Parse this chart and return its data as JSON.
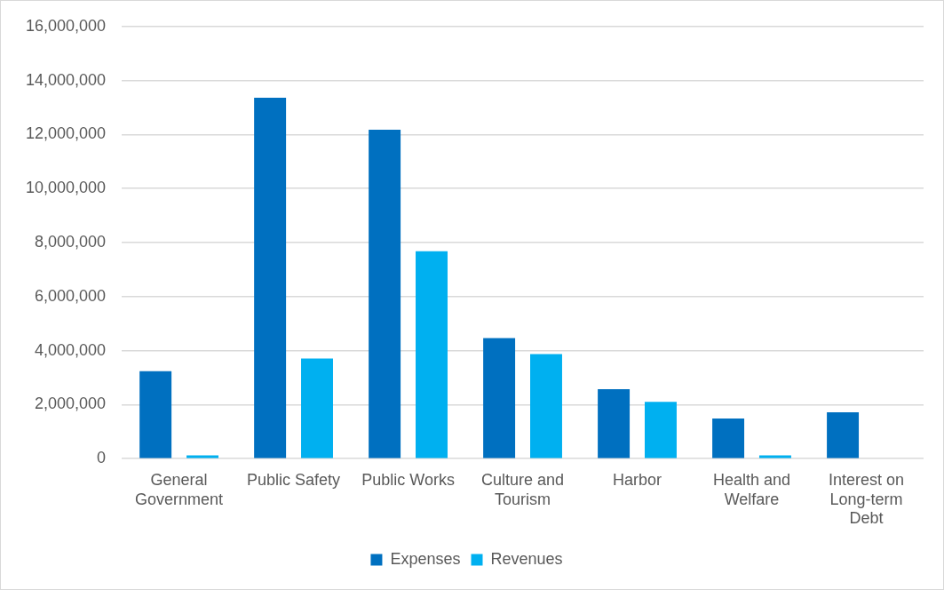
{
  "chart_data": {
    "type": "bar",
    "categories": [
      "General Government",
      "Public Safety",
      "Public Works",
      "Culture and Tourism",
      "Harbor",
      "Health and Welfare",
      "Interest on Long-term Debt"
    ],
    "series": [
      {
        "name": "Expenses",
        "color": "#0070c0",
        "values": [
          3240000,
          13360000,
          12180000,
          4460000,
          2570000,
          1490000,
          1720000
        ]
      },
      {
        "name": "Revenues",
        "color": "#00b0f0",
        "values": [
          120000,
          3710000,
          7680000,
          3870000,
          2100000,
          120000,
          0
        ]
      }
    ],
    "ylim": [
      0,
      16000000
    ],
    "yticks": [
      0,
      {
        "value": 2000000,
        "label": "2,000,000"
      },
      {
        "value": 4000000,
        "label": "4,000,000"
      },
      {
        "value": 6000000,
        "label": "6,000,000"
      },
      {
        "value": 8000000,
        "label": "8,000,000"
      },
      {
        "value": 10000000,
        "label": "10,000,000"
      },
      {
        "value": 12000000,
        "label": "12,000,000"
      },
      {
        "value": 14000000,
        "label": "14,000,000"
      },
      {
        "value": 16000000,
        "label": "16,000,000"
      }
    ],
    "grid": "y",
    "legend": "bottom"
  }
}
